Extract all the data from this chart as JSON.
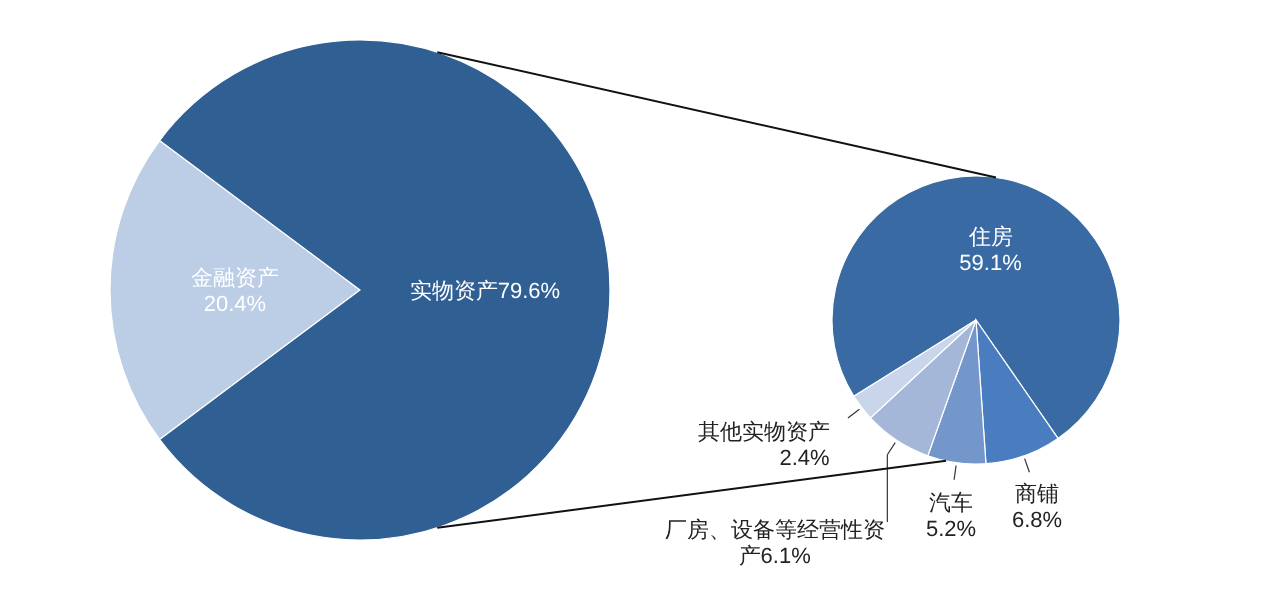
{
  "chart_data": [
    {
      "type": "pie",
      "categories": [
        "金融资产",
        "实物资产"
      ],
      "values": [
        20.4,
        79.6
      ],
      "value_labels": [
        "20.4%",
        "79.6%"
      ],
      "colors": [
        "#bccde6",
        "#305f93"
      ]
    },
    {
      "type": "pie",
      "categories": [
        "住房",
        "商铺",
        "汽车",
        "厂房、设备等经营性资产",
        "其他实物资产"
      ],
      "values": [
        59.1,
        6.8,
        5.2,
        6.1,
        2.4
      ],
      "value_labels": [
        "59.1%",
        "6.8%",
        "5.2%",
        "6.1%",
        "2.4%"
      ],
      "colors": [
        "#3a6aa3",
        "#4a7dbf",
        "#7396cb",
        "#a4b7d9",
        "#c9d5ea"
      ]
    }
  ]
}
